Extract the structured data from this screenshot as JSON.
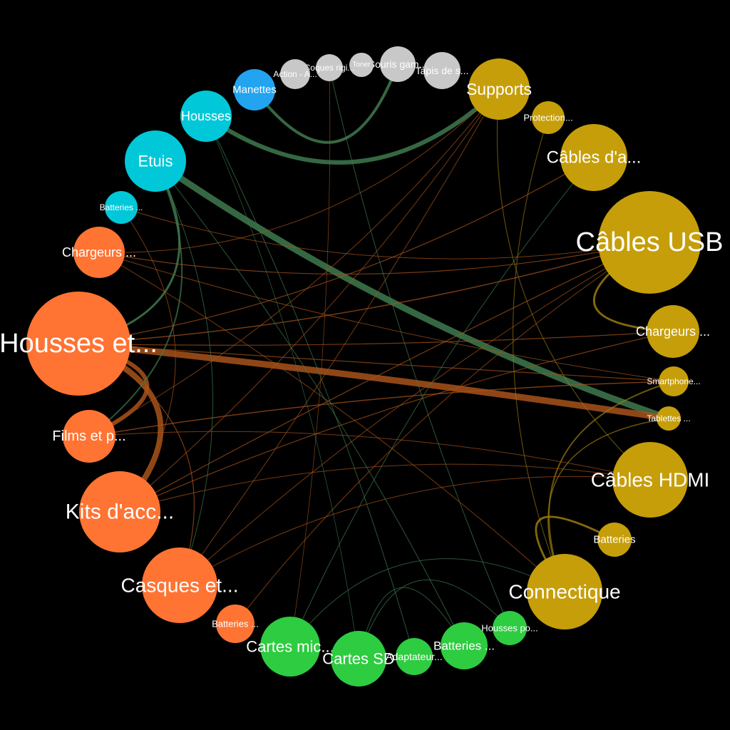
{
  "colors": {
    "background": "#000000",
    "orange": "#ff7433",
    "gold": "#c69e0a",
    "green": "#2ecc40",
    "cyan": "#00c8d8",
    "blue": "#22a4f0",
    "grey": "#c8c8c8",
    "edge_green": "#3e7a4e",
    "edge_orange": "#a8521a",
    "edge_gold": "#9a7a10"
  },
  "nodes": [
    {
      "id": "housses-et",
      "label": "Housses et...",
      "color": "orange"
    },
    {
      "id": "films-et",
      "label": "Films et p...",
      "color": "orange"
    },
    {
      "id": "kits-acc",
      "label": "Kits d'acc...",
      "color": "orange"
    },
    {
      "id": "casques",
      "label": "Casques et...",
      "color": "orange"
    },
    {
      "id": "batteries-orange",
      "label": "Batteries ...",
      "color": "orange"
    },
    {
      "id": "chargeurs-orange",
      "label": "Chargeurs ...",
      "color": "orange"
    },
    {
      "id": "cartes-mic",
      "label": "Cartes mic...",
      "color": "green"
    },
    {
      "id": "cartes-sd",
      "label": "Cartes SD",
      "color": "green"
    },
    {
      "id": "adaptateur",
      "label": "Adaptateur...",
      "color": "green"
    },
    {
      "id": "batteries-green",
      "label": "Batteries ...",
      "color": "green"
    },
    {
      "id": "housses-po",
      "label": "Housses po...",
      "color": "green"
    },
    {
      "id": "connectique",
      "label": "Connectique",
      "color": "gold"
    },
    {
      "id": "batteries-gold",
      "label": "Batteries",
      "color": "gold"
    },
    {
      "id": "cables-hdmi",
      "label": "Câbles HDMI",
      "color": "gold"
    },
    {
      "id": "tablettes",
      "label": "Tablettes ...",
      "color": "gold"
    },
    {
      "id": "smartphone",
      "label": "Smartphone...",
      "color": "gold"
    },
    {
      "id": "chargeurs-gold",
      "label": "Chargeurs ...",
      "color": "gold"
    },
    {
      "id": "cables-usb",
      "label": "Câbles USB",
      "color": "gold"
    },
    {
      "id": "cables-da",
      "label": "Câbles d'a...",
      "color": "gold"
    },
    {
      "id": "protection",
      "label": "Protection...",
      "color": "gold"
    },
    {
      "id": "supports",
      "label": "Supports",
      "color": "gold"
    },
    {
      "id": "tapis",
      "label": "Tapis de s...",
      "color": "grey"
    },
    {
      "id": "souris",
      "label": "Souris gam...",
      "color": "grey"
    },
    {
      "id": "toner",
      "label": "Toner",
      "color": "grey"
    },
    {
      "id": "coques",
      "label": "Coques rigi...",
      "color": "grey"
    },
    {
      "id": "action",
      "label": "Action - A...",
      "color": "grey"
    },
    {
      "id": "manettes",
      "label": "Manettes",
      "color": "blue"
    },
    {
      "id": "housses-cyan",
      "label": "Housses",
      "color": "cyan"
    },
    {
      "id": "etuis",
      "label": "Etuis",
      "color": "cyan"
    },
    {
      "id": "batteries-cyan",
      "label": "Batteries ...",
      "color": "cyan"
    }
  ],
  "links": [
    {
      "source": "etuis",
      "target": "tablettes",
      "weight": 9,
      "color": "edge_green"
    },
    {
      "source": "housses-et",
      "target": "tablettes",
      "weight": 9,
      "color": "edge_orange"
    },
    {
      "source": "housses-et",
      "target": "kits-acc",
      "weight": 8,
      "color": "edge_orange"
    },
    {
      "source": "housses-et",
      "target": "films-et",
      "weight": 6,
      "color": "edge_orange"
    },
    {
      "source": "housses-cyan",
      "target": "supports",
      "weight": 6,
      "color": "edge_green"
    },
    {
      "source": "manettes",
      "target": "souris",
      "weight": 4,
      "color": "edge_green"
    },
    {
      "source": "etuis",
      "target": "housses-et",
      "weight": 3,
      "color": "edge_green"
    },
    {
      "source": "etuis",
      "target": "films-et",
      "weight": 2,
      "color": "edge_green"
    },
    {
      "source": "cables-usb",
      "target": "chargeurs-gold",
      "weight": 3,
      "color": "edge_gold"
    },
    {
      "source": "connectique",
      "target": "batteries-gold",
      "weight": 3,
      "color": "edge_gold"
    },
    {
      "source": "connectique",
      "target": "smartphone",
      "weight": 2,
      "color": "edge_gold"
    },
    {
      "source": "housses-et",
      "target": "cables-usb",
      "weight": 1.5,
      "color": "edge_orange"
    },
    {
      "source": "housses-et",
      "target": "chargeurs-gold",
      "weight": 1.2,
      "color": "edge_orange"
    },
    {
      "source": "housses-et",
      "target": "cables-da",
      "weight": 1.2,
      "color": "edge_orange"
    },
    {
      "source": "housses-et",
      "target": "smartphone",
      "weight": 1.2,
      "color": "edge_orange"
    },
    {
      "source": "kits-acc",
      "target": "chargeurs-gold",
      "weight": 1.2,
      "color": "edge_orange"
    },
    {
      "source": "kits-acc",
      "target": "cables-usb",
      "weight": 1.2,
      "color": "edge_orange"
    },
    {
      "source": "kits-acc",
      "target": "cables-hdmi",
      "weight": 1,
      "color": "edge_orange"
    },
    {
      "source": "casques",
      "target": "cables-usb",
      "weight": 1,
      "color": "edge_orange"
    },
    {
      "source": "casques",
      "target": "supports",
      "weight": 1,
      "color": "edge_orange"
    },
    {
      "source": "chargeurs-orange",
      "target": "cables-usb",
      "weight": 1.2,
      "color": "edge_orange"
    },
    {
      "source": "chargeurs-orange",
      "target": "connectique",
      "weight": 1,
      "color": "edge_orange"
    },
    {
      "source": "chargeurs-orange",
      "target": "supports",
      "weight": 1,
      "color": "edge_orange"
    },
    {
      "source": "films-et",
      "target": "smartphone",
      "weight": 1.5,
      "color": "edge_orange"
    },
    {
      "source": "films-et",
      "target": "cables-hdmi",
      "weight": 1,
      "color": "edge_orange"
    },
    {
      "source": "batteries-orange",
      "target": "cables-usb",
      "weight": 1,
      "color": "edge_orange"
    },
    {
      "source": "cartes-mic",
      "target": "cables-da",
      "weight": 1,
      "color": "edge_green"
    },
    {
      "source": "cartes-mic",
      "target": "connectique",
      "weight": 1,
      "color": "edge_green"
    },
    {
      "source": "cartes-sd",
      "target": "batteries-green",
      "weight": 1,
      "color": "edge_green"
    },
    {
      "source": "cartes-sd",
      "target": "housses-po",
      "weight": 1,
      "color": "edge_green"
    },
    {
      "source": "batteries-green",
      "target": "etuis",
      "weight": 1,
      "color": "edge_green"
    },
    {
      "source": "housses-po",
      "target": "coques",
      "weight": 1,
      "color": "edge_green"
    },
    {
      "source": "adaptateur",
      "target": "housses-cyan",
      "weight": 1,
      "color": "edge_green"
    },
    {
      "source": "connectique",
      "target": "protection",
      "weight": 1,
      "color": "edge_gold"
    },
    {
      "source": "cables-hdmi",
      "target": "supports",
      "weight": 1,
      "color": "edge_gold"
    },
    {
      "source": "connectique",
      "target": "tablettes",
      "weight": 1.5,
      "color": "edge_gold"
    },
    {
      "source": "batteries-cyan",
      "target": "cables-usb",
      "weight": 1,
      "color": "edge_orange"
    },
    {
      "source": "etuis",
      "target": "casques",
      "weight": 1,
      "color": "edge_green"
    },
    {
      "source": "kits-acc",
      "target": "batteries-cyan",
      "weight": 1,
      "color": "edge_orange"
    },
    {
      "source": "housses-et",
      "target": "casques",
      "weight": 1.2,
      "color": "edge_orange"
    },
    {
      "source": "chargeurs-orange",
      "target": "smartphone",
      "weight": 1,
      "color": "edge_orange"
    },
    {
      "source": "casques",
      "target": "cables-hdmi",
      "weight": 1,
      "color": "edge_orange"
    },
    {
      "source": "kits-acc",
      "target": "supports",
      "weight": 1,
      "color": "edge_orange"
    },
    {
      "source": "films-et",
      "target": "supports",
      "weight": 1,
      "color": "edge_orange"
    },
    {
      "source": "coques",
      "target": "cartes-mic",
      "weight": 0.8,
      "color": "edge_orange"
    },
    {
      "source": "housses-cyan",
      "target": "cartes-sd",
      "weight": 0.8,
      "color": "edge_green"
    }
  ]
}
